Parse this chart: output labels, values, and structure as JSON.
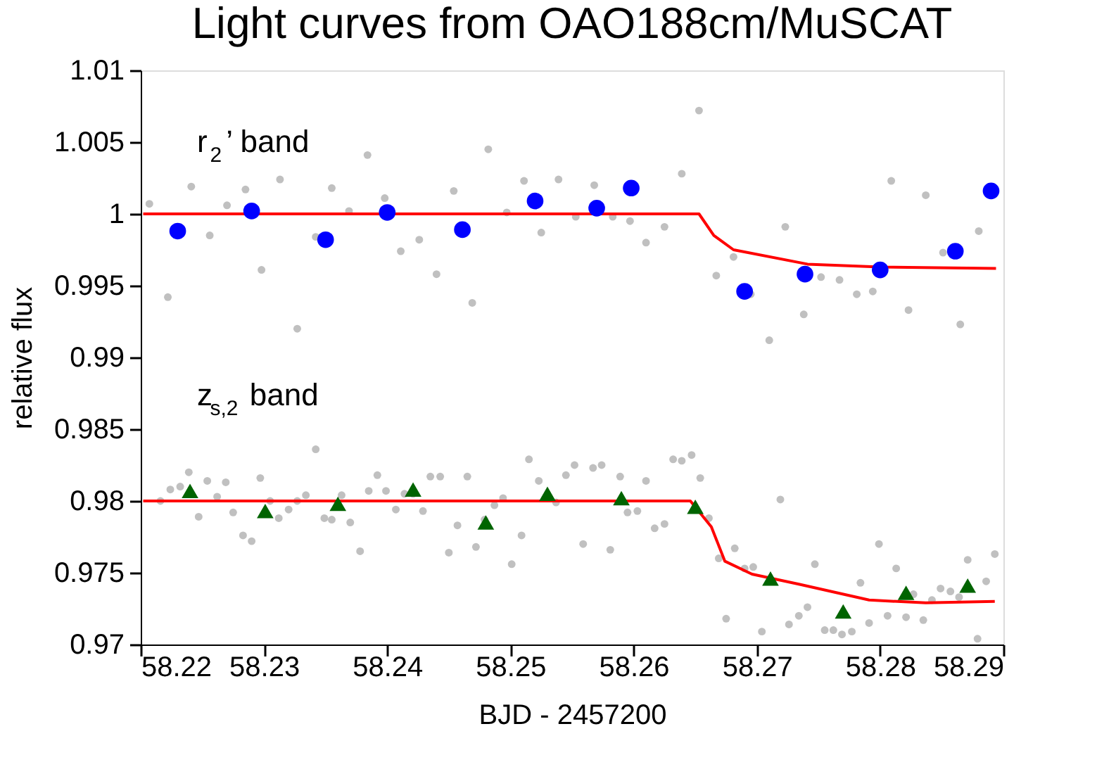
{
  "chart_data": {
    "type": "scatter",
    "title": "Light curves from OAO188cm/MuSCAT",
    "xlabel": "BJD - 2457200",
    "ylabel": "relative flux",
    "xlim": [
      58.22,
      58.29
    ],
    "xticks": [
      58.22,
      58.23,
      58.24,
      58.25,
      58.26,
      58.27,
      58.28,
      58.29
    ],
    "ylim": [
      0.97,
      1.01
    ],
    "yticks": [
      0.97,
      0.975,
      0.98,
      0.985,
      0.99,
      0.995,
      1,
      1.005,
      1.01
    ],
    "grid": false,
    "annotations": [
      "r$_{2}$’ band",
      "z$_{s,2}$ band"
    ],
    "series": [
      {
        "marker": "circle",
        "color": "#c0c0c0",
        "x": [
          58.2207,
          58.2222,
          58.2241,
          58.2256,
          58.227,
          58.2285,
          58.2298,
          58.2313,
          58.2327,
          58.2342,
          58.2355,
          58.2369,
          58.2384,
          58.2398,
          58.2411,
          58.2426,
          58.244,
          58.2454,
          58.2469,
          58.2482,
          58.2497,
          58.2511,
          58.2525,
          58.2539,
          58.2553,
          58.2568,
          58.2583,
          58.2597,
          58.261,
          58.2625,
          58.2639,
          58.2653,
          58.2667,
          58.2681,
          58.2695,
          58.271,
          58.2723,
          58.2738,
          58.2752,
          58.2767,
          58.2781,
          58.2794,
          58.2809,
          58.2823,
          58.2837,
          58.2851,
          58.2865,
          58.288
        ],
        "values": [
          1.0007,
          0.9942,
          1.0019,
          0.9985,
          1.0006,
          1.0017,
          0.9961,
          1.0024,
          0.992,
          0.9984,
          1.0018,
          1.0002,
          1.0041,
          1.0011,
          0.9974,
          0.9982,
          0.9958,
          1.0016,
          0.9938,
          1.0045,
          1.0001,
          1.0023,
          0.9987,
          1.0024,
          0.9998,
          1.002,
          0.9998,
          0.9995,
          0.998,
          0.9991,
          1.0028,
          1.0072,
          0.9957,
          0.997,
          0.9944,
          0.9912,
          0.9991,
          0.993,
          0.9956,
          0.9954,
          0.9944,
          0.9946,
          1.0023,
          0.9933,
          1.0013,
          0.9973,
          0.9923,
          0.9988
        ]
      },
      {
        "marker": "circle",
        "color": "#c0c0c0",
        "x": [
          58.2216,
          58.2224,
          58.2232,
          58.2239,
          58.2247,
          58.2254,
          58.2262,
          58.2269,
          58.2275,
          58.2283,
          58.229,
          58.2297,
          58.2305,
          58.2312,
          58.232,
          58.2327,
          58.2334,
          58.2342,
          58.2349,
          58.2355,
          58.2363,
          58.237,
          58.2378,
          58.2385,
          58.2392,
          58.2399,
          58.2407,
          58.2414,
          58.2421,
          58.2429,
          58.2435,
          58.2443,
          58.245,
          58.2457,
          58.2465,
          58.2472,
          58.2479,
          58.2487,
          58.2494,
          58.2501,
          58.2509,
          58.2515,
          58.2523,
          58.2537,
          58.2545,
          58.2552,
          58.2559,
          58.2567,
          58.2574,
          58.2581,
          58.2589,
          58.2595,
          58.2603,
          58.261,
          58.2617,
          58.2625,
          58.2632,
          58.2639,
          58.2647,
          58.2654,
          58.2661,
          58.2669,
          58.2675,
          58.2682,
          58.269,
          58.2697,
          58.2704,
          58.2719,
          58.2726,
          58.2734,
          58.2741,
          58.2747,
          58.2755,
          58.2762,
          58.2769,
          58.2777,
          58.2784,
          58.2791,
          58.2799,
          58.2806,
          58.2813,
          58.2821,
          58.2827,
          58.2835,
          58.2842,
          58.2849,
          58.2857,
          58.2864,
          58.2871,
          58.2879,
          58.2886,
          58.2893
        ],
        "values": [
          0.98,
          0.9808,
          0.981,
          0.982,
          0.9789,
          0.9814,
          0.9803,
          0.9813,
          0.9792,
          0.9776,
          0.9772,
          0.9816,
          0.98,
          0.9788,
          0.9794,
          0.98,
          0.9804,
          0.9836,
          0.9788,
          0.9787,
          0.9804,
          0.9785,
          0.9765,
          0.9807,
          0.9818,
          0.9807,
          0.9794,
          0.9805,
          0.9805,
          0.9793,
          0.9817,
          0.9817,
          0.9764,
          0.9783,
          0.9817,
          0.9768,
          0.9787,
          0.9797,
          0.9802,
          0.9756,
          0.9776,
          0.9829,
          0.9814,
          0.9799,
          0.9818,
          0.9825,
          0.977,
          0.9823,
          0.9825,
          0.9766,
          0.9817,
          0.9792,
          0.9793,
          0.9814,
          0.9781,
          0.9784,
          0.9829,
          0.9828,
          0.9832,
          0.9816,
          0.9788,
          0.976,
          0.9718,
          0.9767,
          0.9753,
          0.9754,
          0.9709,
          0.9801,
          0.9714,
          0.972,
          0.9726,
          0.9756,
          0.971,
          0.971,
          0.9707,
          0.9709,
          0.9743,
          0.9715,
          0.977,
          0.972,
          0.9753,
          0.9719,
          0.9735,
          0.9717,
          0.9731,
          0.9739,
          0.9737,
          0.9733,
          0.9759,
          0.9704,
          0.9744,
          0.9763
        ]
      },
      {
        "type": "line",
        "marker": "none",
        "line_style": "solid",
        "color": "#ff0000",
        "x": [
          58.2202,
          58.2653,
          58.2665,
          58.2681,
          58.2741,
          58.28,
          58.2894
        ],
        "values": [
          1.0,
          1.0,
          0.9985,
          0.9975,
          0.9965,
          0.9963,
          0.9962
        ]
      },
      {
        "type": "line",
        "marker": "none",
        "line_style": "solid",
        "color": "#ff0000",
        "x": [
          58.2202,
          58.2646,
          58.2663,
          58.2674,
          58.2696,
          58.2734,
          58.2791,
          58.2837,
          58.2893
        ],
        "values": [
          0.98,
          0.98,
          0.9782,
          0.9758,
          0.9749,
          0.9742,
          0.9731,
          0.9729,
          0.973
        ]
      },
      {
        "marker": "circle",
        "color": "#0000ff",
        "x": [
          58.223,
          58.229,
          58.235,
          58.24,
          58.2461,
          58.252,
          58.257,
          58.2598,
          58.269,
          58.2739,
          58.28,
          58.2861,
          58.289
        ],
        "values": [
          0.9988,
          1.0002,
          0.9982,
          1.0001,
          0.9989,
          1.0009,
          1.0004,
          1.0018,
          0.9946,
          0.9958,
          0.9961,
          0.9974,
          1.0016
        ]
      },
      {
        "marker": "triangle",
        "color": "#006400",
        "x": [
          58.224,
          58.2301,
          58.236,
          58.2421,
          58.248,
          58.253,
          58.259,
          58.265,
          58.2711,
          58.277,
          58.2821,
          58.2871
        ],
        "values": [
          0.9807,
          0.9793,
          0.9798,
          0.9808,
          0.9785,
          0.9805,
          0.9802,
          0.9796,
          0.9746,
          0.9723,
          0.9736,
          0.9741
        ]
      }
    ]
  }
}
